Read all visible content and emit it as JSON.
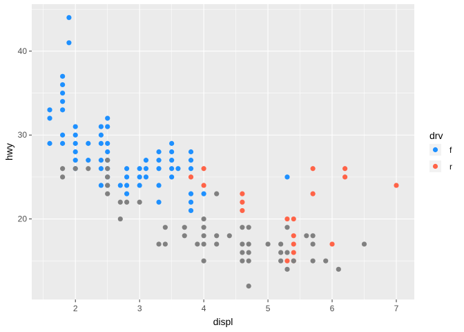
{
  "chart_data": {
    "type": "scatter",
    "xlabel": "displ",
    "ylabel": "hwy",
    "xlim": [
      1.32,
      7.28
    ],
    "ylim": [
      10.4,
      45.6
    ],
    "x_ticks": [
      2,
      3,
      4,
      5,
      6,
      7
    ],
    "x_tick_labels": [
      "2",
      "3",
      "4",
      "5",
      "6",
      "7"
    ],
    "y_ticks": [
      20,
      30,
      40
    ],
    "y_tick_labels": [
      "20",
      "30",
      "40"
    ],
    "grid": true,
    "background": "#ebebeb",
    "grid_color": "#ffffff",
    "legend": {
      "title": "drv",
      "position": "right",
      "entries": [
        {
          "label": "f",
          "color": "#1e90ff"
        },
        {
          "label": "r",
          "color": "#ff6347"
        }
      ]
    },
    "series": [
      {
        "name": "f",
        "color": "#1e90ff",
        "points": [
          [
            1.6,
            33
          ],
          [
            1.6,
            32
          ],
          [
            1.6,
            29
          ],
          [
            1.8,
            37
          ],
          [
            1.8,
            36
          ],
          [
            1.8,
            35
          ],
          [
            1.8,
            34
          ],
          [
            1.8,
            33
          ],
          [
            1.8,
            30
          ],
          [
            1.8,
            29
          ],
          [
            1.9,
            44
          ],
          [
            1.9,
            41
          ],
          [
            2.0,
            31
          ],
          [
            2.0,
            30
          ],
          [
            2.0,
            29
          ],
          [
            2.0,
            28
          ],
          [
            2.0,
            27
          ],
          [
            2.0,
            26
          ],
          [
            2.2,
            29
          ],
          [
            2.2,
            27
          ],
          [
            2.4,
            31
          ],
          [
            2.4,
            30
          ],
          [
            2.4,
            29
          ],
          [
            2.4,
            27
          ],
          [
            2.4,
            26
          ],
          [
            2.4,
            24
          ],
          [
            2.5,
            32
          ],
          [
            2.5,
            31
          ],
          [
            2.5,
            29
          ],
          [
            2.5,
            28
          ],
          [
            2.5,
            27
          ],
          [
            2.5,
            26
          ],
          [
            2.5,
            25
          ],
          [
            2.5,
            24
          ],
          [
            2.7,
            24
          ],
          [
            2.8,
            26
          ],
          [
            2.8,
            25
          ],
          [
            2.8,
            24
          ],
          [
            2.8,
            23
          ],
          [
            3.0,
            26
          ],
          [
            3.0,
            25
          ],
          [
            3.0,
            24
          ],
          [
            3.1,
            27
          ],
          [
            3.1,
            26
          ],
          [
            3.1,
            25
          ],
          [
            3.3,
            28
          ],
          [
            3.3,
            27
          ],
          [
            3.3,
            26
          ],
          [
            3.3,
            24
          ],
          [
            3.3,
            22
          ],
          [
            3.5,
            29
          ],
          [
            3.5,
            28
          ],
          [
            3.5,
            27
          ],
          [
            3.5,
            26
          ],
          [
            3.5,
            25
          ],
          [
            3.6,
            26
          ],
          [
            3.8,
            28
          ],
          [
            3.8,
            27
          ],
          [
            3.8,
            26
          ],
          [
            3.8,
            23
          ],
          [
            3.8,
            22
          ],
          [
            3.8,
            21
          ],
          [
            4.0,
            23
          ],
          [
            5.3,
            25
          ]
        ]
      },
      {
        "name": "r",
        "color": "#ff6347",
        "points": [
          [
            3.8,
            25
          ],
          [
            4.0,
            26
          ],
          [
            4.0,
            24
          ],
          [
            4.6,
            23
          ],
          [
            4.6,
            22
          ],
          [
            4.6,
            21
          ],
          [
            5.3,
            20
          ],
          [
            5.3,
            15
          ],
          [
            5.4,
            20
          ],
          [
            5.4,
            18
          ],
          [
            5.4,
            17
          ],
          [
            5.4,
            16
          ],
          [
            5.4,
            15
          ],
          [
            5.7,
            26
          ],
          [
            5.7,
            23
          ],
          [
            6.0,
            17
          ],
          [
            6.2,
            26
          ],
          [
            6.2,
            25
          ],
          [
            7.0,
            24
          ]
        ]
      },
      {
        "name": "",
        "color": "#808080",
        "points": [
          [
            1.8,
            26
          ],
          [
            1.8,
            25
          ],
          [
            2.0,
            26
          ],
          [
            2.2,
            26
          ],
          [
            2.5,
            27
          ],
          [
            2.5,
            26
          ],
          [
            2.5,
            25
          ],
          [
            2.5,
            24
          ],
          [
            2.5,
            23
          ],
          [
            2.7,
            22
          ],
          [
            2.7,
            20
          ],
          [
            2.8,
            22
          ],
          [
            3.0,
            22
          ],
          [
            3.3,
            17
          ],
          [
            3.4,
            19
          ],
          [
            3.4,
            17
          ],
          [
            3.7,
            19
          ],
          [
            3.7,
            18
          ],
          [
            3.9,
            17
          ],
          [
            4.0,
            20
          ],
          [
            4.0,
            19
          ],
          [
            4.0,
            18
          ],
          [
            4.0,
            17
          ],
          [
            4.0,
            15
          ],
          [
            4.2,
            23
          ],
          [
            4.2,
            18
          ],
          [
            4.2,
            17
          ],
          [
            4.4,
            18
          ],
          [
            4.6,
            19
          ],
          [
            4.6,
            17
          ],
          [
            4.6,
            16
          ],
          [
            4.6,
            15
          ],
          [
            4.7,
            19
          ],
          [
            4.7,
            17
          ],
          [
            4.7,
            16
          ],
          [
            4.7,
            15
          ],
          [
            4.7,
            12
          ],
          [
            5.0,
            17
          ],
          [
            5.2,
            17
          ],
          [
            5.2,
            16
          ],
          [
            5.2,
            15
          ],
          [
            5.3,
            19
          ],
          [
            5.3,
            16
          ],
          [
            5.3,
            14
          ],
          [
            5.4,
            15
          ],
          [
            5.6,
            18
          ],
          [
            5.7,
            18
          ],
          [
            5.7,
            17
          ],
          [
            5.7,
            15
          ],
          [
            5.9,
            15
          ],
          [
            6.1,
            14
          ],
          [
            6.5,
            17
          ]
        ]
      }
    ]
  }
}
